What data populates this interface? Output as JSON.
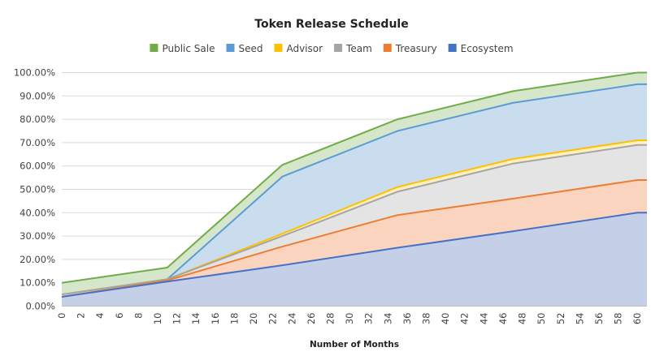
{
  "chart_data": {
    "type": "area",
    "title": "Token Release Schedule",
    "xlabel": "Number of Months",
    "ylabel": "",
    "ylim": [
      0,
      100
    ],
    "xlim": [
      0,
      61
    ],
    "grid": true,
    "legend_position": "top",
    "x_ticks": [
      "0",
      "2",
      "4",
      "6",
      "8",
      "10",
      "12",
      "14",
      "16",
      "18",
      "20",
      "22",
      "24",
      "26",
      "28",
      "30",
      "32",
      "34",
      "36",
      "38",
      "40",
      "42",
      "44",
      "46",
      "48",
      "50",
      "52",
      "54",
      "56",
      "58",
      "60"
    ],
    "y_ticks": [
      "0.00%",
      "10.00%",
      "20.00%",
      "30.00%",
      "40.00%",
      "50.00%",
      "60.00%",
      "70.00%",
      "80.00%",
      "90.00%",
      "100.00%"
    ],
    "series": [
      {
        "name": "Public Sale",
        "color": "#70ad47",
        "fill": "#d6e6cb",
        "x": [
          0,
          11,
          23,
          35,
          47,
          60,
          61
        ],
        "values": [
          10,
          16.5,
          60.5,
          80,
          92,
          100,
          100
        ]
      },
      {
        "name": "Seed",
        "color": "#5b9bd5",
        "fill": "#c9ddef",
        "x": [
          0,
          11,
          23,
          35,
          47,
          60,
          61
        ],
        "values": [
          5,
          11.5,
          55.5,
          75,
          87,
          95,
          95
        ]
      },
      {
        "name": "Advisor",
        "color": "#ffc000",
        "fill": "#fff0c2",
        "x": [
          0,
          11,
          23,
          35,
          47,
          60,
          61
        ],
        "values": [
          5,
          11.5,
          31,
          51,
          63,
          71,
          71
        ]
      },
      {
        "name": "Team",
        "color": "#a5a5a5",
        "fill": "#e4e4e4",
        "x": [
          0,
          11,
          23,
          35,
          47,
          60,
          61
        ],
        "values": [
          5,
          11.5,
          30,
          49,
          61,
          69,
          69
        ]
      },
      {
        "name": "Treasury",
        "color": "#ed7d31",
        "fill": "#fbd4c0",
        "x": [
          0,
          11,
          23,
          35,
          47,
          60,
          61
        ],
        "values": [
          4,
          11,
          25.5,
          39,
          46,
          54,
          54
        ]
      },
      {
        "name": "Ecosystem",
        "color": "#4472c4",
        "fill": "#c5cfe8",
        "x": [
          0,
          11,
          23,
          35,
          47,
          60,
          61
        ],
        "values": [
          4,
          10.5,
          17.5,
          25,
          32,
          40,
          40
        ]
      }
    ]
  }
}
